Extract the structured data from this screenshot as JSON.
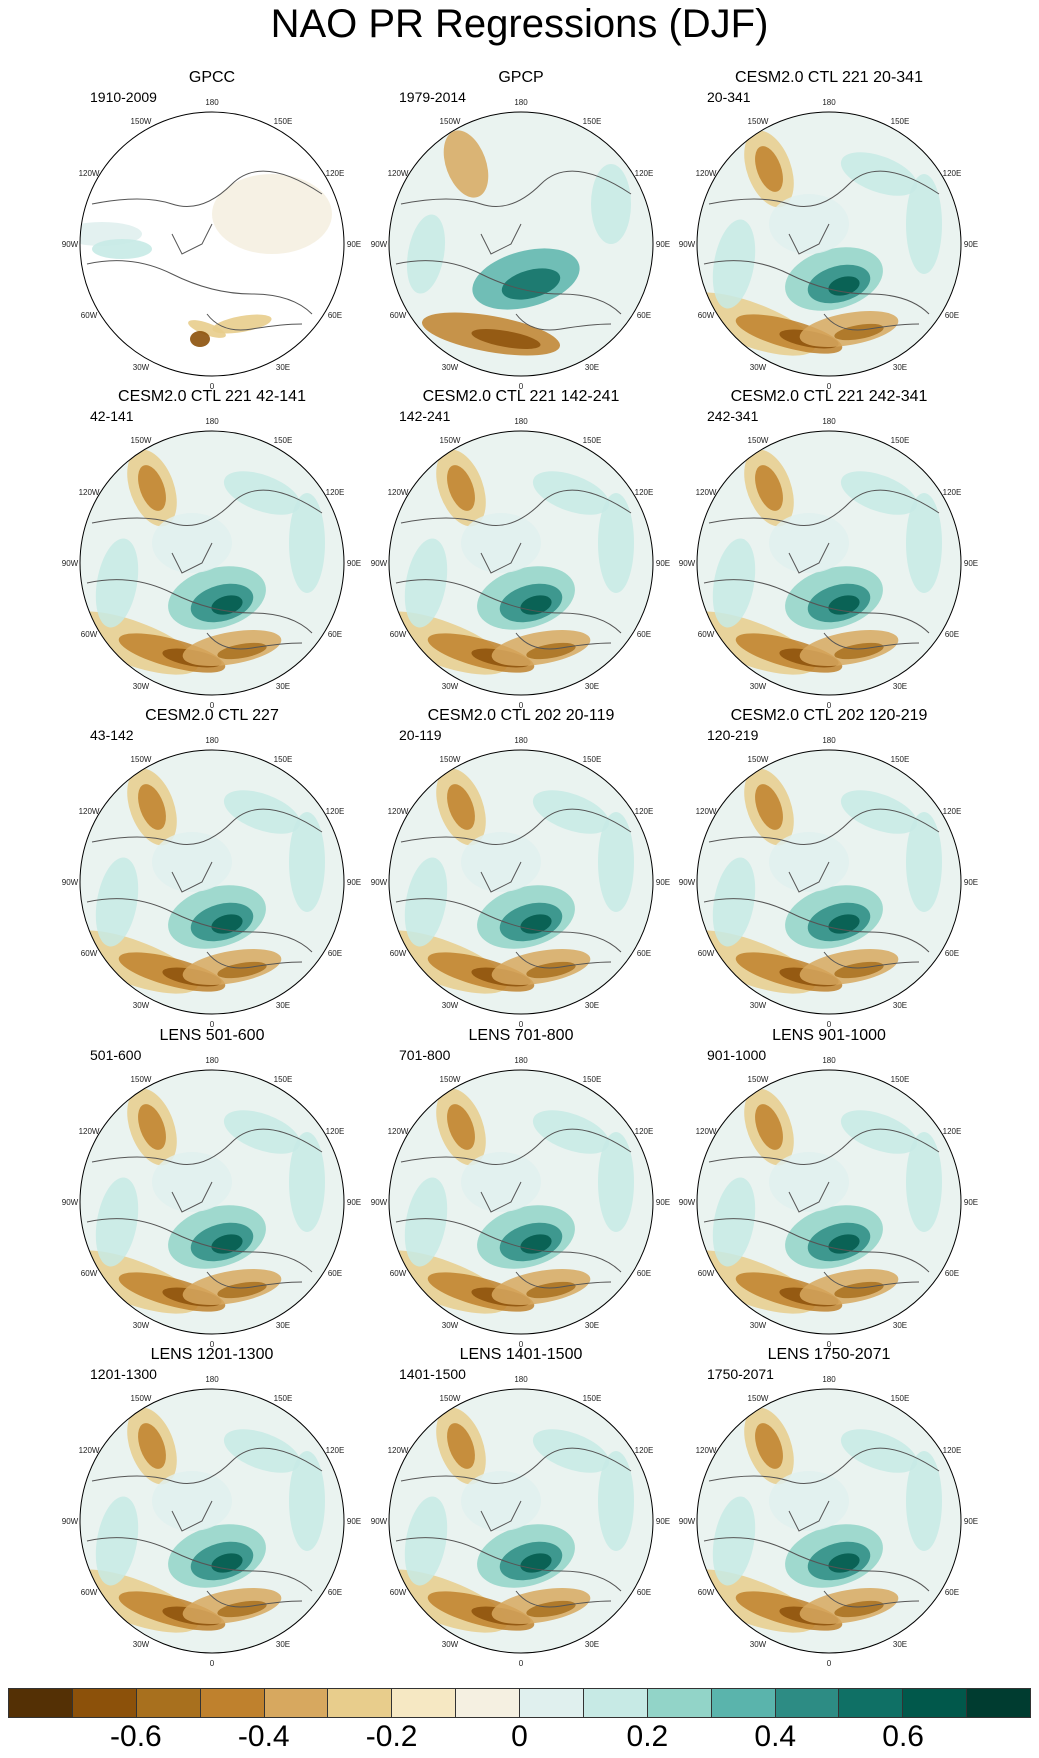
{
  "title": "NAO PR Regressions (DJF)",
  "lon_labels": [
    "180",
    "150E",
    "120E",
    "90E",
    "60E",
    "30E",
    "0",
    "30W",
    "60W",
    "90W",
    "120W",
    "150W"
  ],
  "panels": [
    {
      "title": "GPCC",
      "period": "1910-2009",
      "pattern": "obs_land"
    },
    {
      "title": "GPCP",
      "period": "1979-2014",
      "pattern": "obs"
    },
    {
      "title": "CESM2.0 CTL 221 20-341",
      "period": "20-341",
      "pattern": "model"
    },
    {
      "title": "CESM2.0 CTL 221 42-141",
      "period": "42-141",
      "pattern": "model"
    },
    {
      "title": "CESM2.0 CTL 221 142-241",
      "period": "142-241",
      "pattern": "model"
    },
    {
      "title": "CESM2.0 CTL 221 242-341",
      "period": "242-341",
      "pattern": "model"
    },
    {
      "title": "CESM2.0 CTL 227",
      "period": "43-142",
      "pattern": "model"
    },
    {
      "title": "CESM2.0 CTL 202 20-119",
      "period": "20-119",
      "pattern": "model"
    },
    {
      "title": "CESM2.0 CTL 202 120-219",
      "period": "120-219",
      "pattern": "model"
    },
    {
      "title": "LENS 501-600",
      "period": "501-600",
      "pattern": "model"
    },
    {
      "title": "LENS 701-800",
      "period": "701-800",
      "pattern": "model"
    },
    {
      "title": "LENS 901-1000",
      "period": "901-1000",
      "pattern": "model"
    },
    {
      "title": "LENS 1201-1300",
      "period": "1201-1300",
      "pattern": "model"
    },
    {
      "title": "LENS 1401-1500",
      "period": "1401-1500",
      "pattern": "model"
    },
    {
      "title": "LENS 1750-2071",
      "period": "1750-2071",
      "pattern": "model"
    }
  ],
  "colorbar": {
    "colors": [
      "#543005",
      "#8c510a",
      "#a8701e",
      "#bf812d",
      "#d7a85f",
      "#e8cd8c",
      "#f6e8c3",
      "#f5f0e1",
      "#e0f0ee",
      "#c7eae5",
      "#92d4c8",
      "#5ab4ac",
      "#2d8c84",
      "#0f7065",
      "#01584b",
      "#003c30"
    ],
    "labels": [
      "-0.6",
      "-0.4",
      "-0.2",
      "0",
      "0.2",
      "0.4",
      "0.6"
    ]
  }
}
